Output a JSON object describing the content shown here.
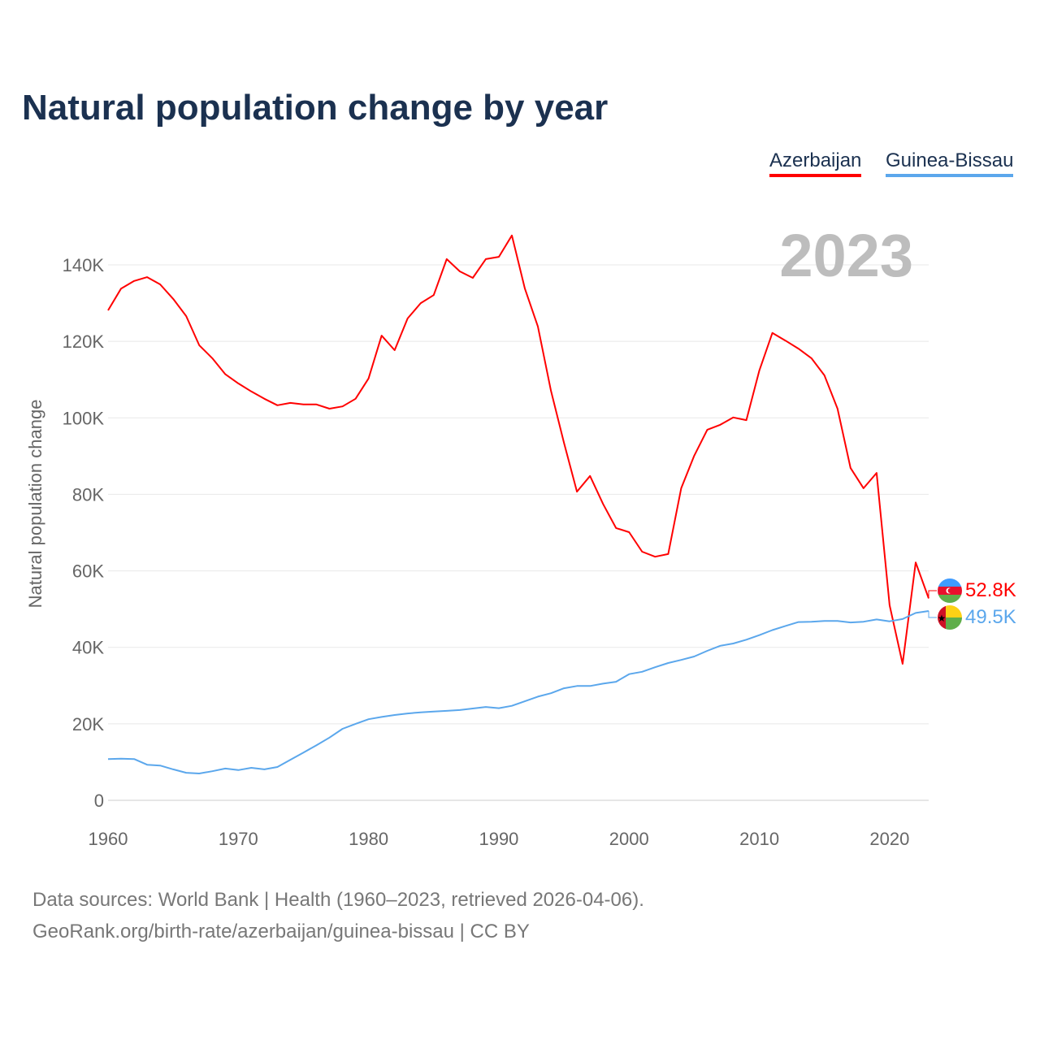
{
  "title": "Natural population change by year",
  "footer": {
    "line1": "Data sources: World Bank | Health (1960–2023, retrieved 2026-04-06).",
    "line2": "GeoRank.org/birth-rate/azerbaijan/guinea-bissau | CC BY"
  },
  "chart_data": {
    "type": "line",
    "title": "Natural population change by year",
    "ylabel": "Natural population change",
    "xlabel": "",
    "year_watermark": "2023",
    "xlim": [
      1960,
      2023
    ],
    "ylim": [
      0,
      140000
    ],
    "x_ticks": [
      "1960",
      "1970",
      "1980",
      "1990",
      "2000",
      "2010",
      "2020"
    ],
    "y_ticks": [
      "0",
      "20K",
      "40K",
      "60K",
      "80K",
      "100K",
      "120K",
      "140K"
    ],
    "grid": true,
    "legend_position": "top-right",
    "x": [
      1960,
      1961,
      1962,
      1963,
      1964,
      1965,
      1966,
      1967,
      1968,
      1969,
      1970,
      1971,
      1972,
      1973,
      1974,
      1975,
      1976,
      1977,
      1978,
      1979,
      1980,
      1981,
      1982,
      1983,
      1984,
      1985,
      1986,
      1987,
      1988,
      1989,
      1990,
      1991,
      1992,
      1993,
      1994,
      1995,
      1996,
      1997,
      1998,
      1999,
      2000,
      2001,
      2002,
      2003,
      2004,
      2005,
      2006,
      2007,
      2008,
      2009,
      2010,
      2011,
      2012,
      2013,
      2014,
      2015,
      2016,
      2017,
      2018,
      2019,
      2020,
      2021,
      2022,
      2023
    ],
    "series": [
      {
        "name": "Azerbaijan",
        "color": "#ff0000",
        "end_label": "52.8K",
        "values": [
          128100,
          133800,
          135800,
          136800,
          134900,
          131100,
          126600,
          119000,
          115600,
          111400,
          109000,
          106900,
          105000,
          103300,
          103900,
          103500,
          103500,
          102400,
          103000,
          105000,
          110300,
          121500,
          117700,
          126000,
          130000,
          132100,
          141500,
          138300,
          136600,
          141500,
          142100,
          147700,
          133800,
          123900,
          107100,
          93500,
          80700,
          84800,
          77500,
          71200,
          70100,
          65000,
          63700,
          64400,
          81600,
          90100,
          96900,
          98200,
          100100,
          99400,
          112400,
          122200,
          120200,
          118100,
          115600,
          111100,
          102400,
          86900,
          81600,
          85600,
          51000,
          35700,
          62200,
          52800
        ]
      },
      {
        "name": "Guinea-Bissau",
        "color": "#5ba7ec",
        "end_label": "49.5K",
        "values": [
          10800,
          10900,
          10800,
          9300,
          9100,
          8100,
          7200,
          7000,
          7600,
          8300,
          7900,
          8500,
          8100,
          8700,
          10600,
          12500,
          14400,
          16400,
          18700,
          20000,
          21200,
          21800,
          22300,
          22700,
          23000,
          23200,
          23400,
          23600,
          24000,
          24400,
          24100,
          24700,
          25900,
          27100,
          28000,
          29300,
          29900,
          29900,
          30500,
          31000,
          33000,
          33600,
          34800,
          35900,
          36700,
          37600,
          39100,
          40400,
          41000,
          42000,
          43200,
          44500,
          45600,
          46600,
          46700,
          46900,
          46900,
          46500,
          46700,
          47300,
          46800,
          47400,
          49000,
          49500
        ]
      }
    ]
  }
}
